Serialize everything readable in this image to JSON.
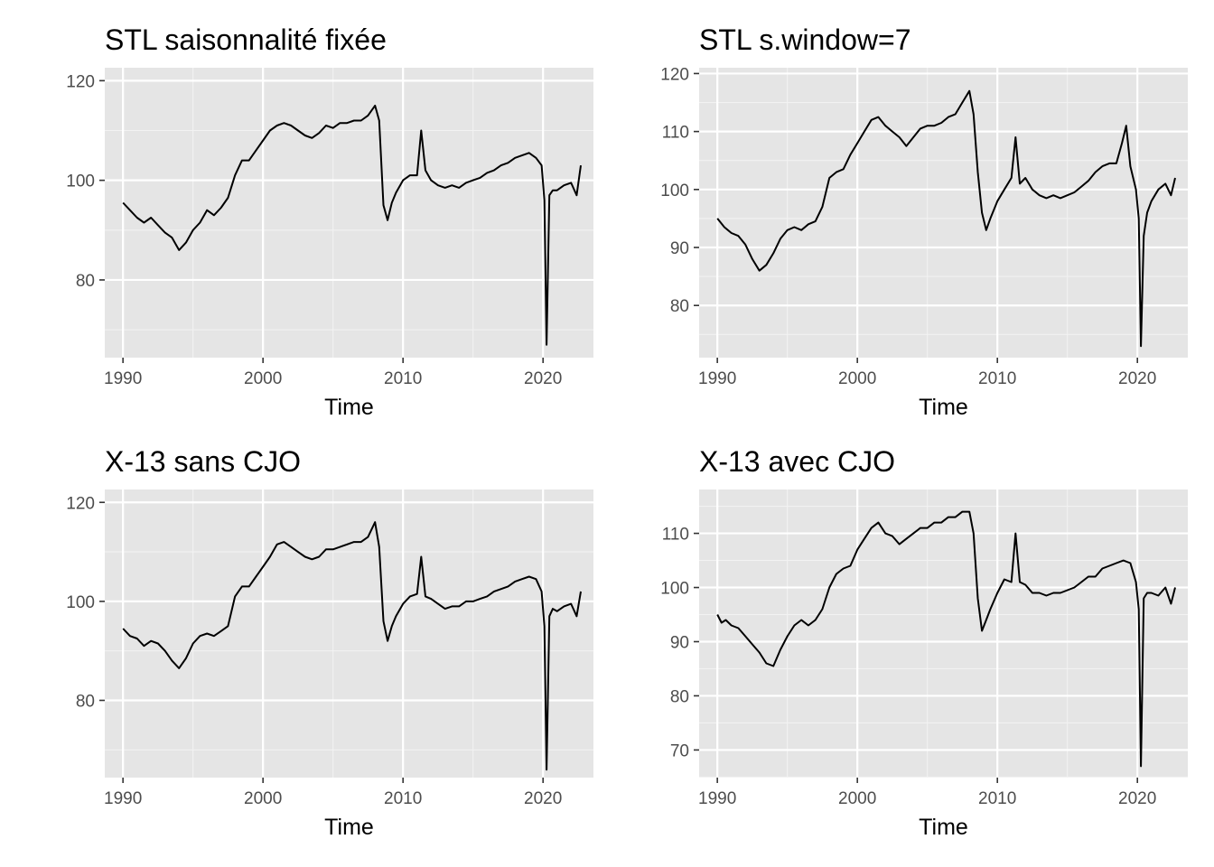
{
  "colors": {
    "panel_bg": "#e5e5e5",
    "grid_major": "#ffffff",
    "grid_minor": "#f2f2f2",
    "line": "#000000",
    "tick_text": "#4d4d4d",
    "tick_mark": "#333333"
  },
  "chart_data": [
    {
      "type": "line",
      "title": "STL saisonnalité fixée",
      "xlabel": "Time",
      "ylabel": "",
      "xlim": [
        1988.7,
        2023.6
      ],
      "ylim": [
        64.4,
        122.6
      ],
      "xticks": [
        1990,
        2000,
        2010,
        2020
      ],
      "xtick_labels": [
        "1990",
        "2000",
        "2010",
        "2020"
      ],
      "yticks": [
        80,
        100,
        120
      ],
      "ytick_labels": [
        "80",
        "100",
        "120"
      ],
      "grid": true,
      "series": [
        {
          "x": [
            1990.0,
            1990.5,
            1991.0,
            1991.5,
            1992.0,
            1992.5,
            1993.0,
            1993.5,
            1994.0,
            1994.5,
            1995.0,
            1995.5,
            1996.0,
            1996.5,
            1997.0,
            1997.5,
            1998.0,
            1998.5,
            1999.0,
            1999.5,
            2000.0,
            2000.5,
            2001.0,
            2001.5,
            2002.0,
            2002.5,
            2003.0,
            2003.5,
            2004.0,
            2004.5,
            2005.0,
            2005.5,
            2006.0,
            2006.5,
            2007.0,
            2007.5,
            2008.0,
            2008.3,
            2008.6,
            2008.9,
            2009.2,
            2009.5,
            2010.0,
            2010.5,
            2011.0,
            2011.3,
            2011.6,
            2012.0,
            2012.5,
            2013.0,
            2013.5,
            2014.0,
            2014.5,
            2015.0,
            2015.5,
            2016.0,
            2016.5,
            2017.0,
            2017.5,
            2018.0,
            2018.5,
            2019.0,
            2019.5,
            2019.9,
            2020.1,
            2020.25,
            2020.45,
            2020.7,
            2021.0,
            2021.5,
            2022.0,
            2022.4,
            2022.7
          ],
          "y": [
            95.5,
            94,
            92.5,
            91.5,
            92.5,
            91,
            89.5,
            88.5,
            86,
            87.5,
            90,
            91.5,
            94,
            93,
            94.5,
            96.5,
            101,
            104,
            104,
            106,
            108,
            110,
            111,
            111.5,
            111,
            110,
            109,
            108.5,
            109.5,
            111,
            110.5,
            111.5,
            111.5,
            112,
            112,
            113,
            115,
            112,
            95,
            92,
            95.5,
            97.5,
            100,
            101,
            101,
            110,
            102,
            100,
            99,
            98.5,
            99,
            98.5,
            99.5,
            100,
            100.5,
            101.5,
            102,
            103,
            103.5,
            104.5,
            105,
            105.5,
            104.5,
            103,
            96,
            67,
            97,
            98,
            98,
            99,
            99.5,
            97,
            103
          ]
        }
      ]
    },
    {
      "type": "line",
      "title": "STL s.window=7",
      "xlabel": "Time",
      "ylabel": "",
      "xlim": [
        1988.7,
        2023.6
      ],
      "ylim": [
        71.0,
        121.0
      ],
      "xticks": [
        1990,
        2000,
        2010,
        2020
      ],
      "xtick_labels": [
        "1990",
        "2000",
        "2010",
        "2020"
      ],
      "yticks": [
        80,
        90,
        100,
        110,
        120
      ],
      "ytick_labels": [
        "80",
        "90",
        "100",
        "110",
        "120"
      ],
      "grid": true,
      "series": [
        {
          "x": [
            1990.0,
            1990.5,
            1991.0,
            1991.5,
            1992.0,
            1992.5,
            1993.0,
            1993.5,
            1994.0,
            1994.5,
            1995.0,
            1995.5,
            1996.0,
            1996.5,
            1997.0,
            1997.5,
            1998.0,
            1998.5,
            1999.0,
            1999.5,
            2000.0,
            2000.5,
            2001.0,
            2001.5,
            2002.0,
            2002.5,
            2003.0,
            2003.5,
            2004.0,
            2004.5,
            2005.0,
            2005.5,
            2006.0,
            2006.5,
            2007.0,
            2007.5,
            2008.0,
            2008.3,
            2008.6,
            2008.9,
            2009.2,
            2009.5,
            2010.0,
            2010.5,
            2011.0,
            2011.3,
            2011.6,
            2012.0,
            2012.5,
            2013.0,
            2013.5,
            2014.0,
            2014.5,
            2015.0,
            2015.5,
            2016.0,
            2016.5,
            2017.0,
            2017.5,
            2018.0,
            2018.5,
            2018.9,
            2019.2,
            2019.5,
            2019.9,
            2020.1,
            2020.25,
            2020.45,
            2020.7,
            2021.0,
            2021.5,
            2022.0,
            2022.4,
            2022.7
          ],
          "y": [
            95,
            93.5,
            92.5,
            92,
            90.5,
            88,
            86,
            87,
            89,
            91.5,
            93,
            93.5,
            93,
            94,
            94.5,
            97,
            102,
            103,
            103.5,
            106,
            108,
            110,
            112,
            112.5,
            111,
            110,
            109,
            107.5,
            109,
            110.5,
            111,
            111,
            111.5,
            112.5,
            113,
            115,
            117,
            113,
            103,
            96,
            93,
            95,
            98,
            100,
            102,
            109,
            101,
            102,
            100,
            99,
            98.5,
            99,
            98.5,
            99,
            99.5,
            100.5,
            101.5,
            103,
            104,
            104.5,
            104.5,
            108,
            111,
            104,
            100,
            95,
            73,
            92,
            96,
            98,
            100,
            101,
            99,
            102
          ]
        }
      ]
    },
    {
      "type": "line",
      "title": "X-13 sans CJO",
      "xlabel": "Time",
      "ylabel": "",
      "xlim": [
        1988.7,
        2023.6
      ],
      "ylim": [
        64.4,
        122.6
      ],
      "xticks": [
        1990,
        2000,
        2010,
        2020
      ],
      "xtick_labels": [
        "1990",
        "2000",
        "2010",
        "2020"
      ],
      "yticks": [
        80,
        100,
        120
      ],
      "ytick_labels": [
        "80",
        "100",
        "120"
      ],
      "grid": true,
      "series": [
        {
          "x": [
            1990.0,
            1990.5,
            1991.0,
            1991.5,
            1992.0,
            1992.5,
            1993.0,
            1993.5,
            1994.0,
            1994.5,
            1995.0,
            1995.5,
            1996.0,
            1996.5,
            1997.0,
            1997.5,
            1998.0,
            1998.5,
            1999.0,
            1999.5,
            2000.0,
            2000.5,
            2001.0,
            2001.5,
            2002.0,
            2002.5,
            2003.0,
            2003.5,
            2004.0,
            2004.5,
            2005.0,
            2005.5,
            2006.0,
            2006.5,
            2007.0,
            2007.5,
            2008.0,
            2008.3,
            2008.6,
            2008.9,
            2009.2,
            2009.5,
            2010.0,
            2010.5,
            2011.0,
            2011.3,
            2011.6,
            2012.0,
            2012.5,
            2013.0,
            2013.5,
            2014.0,
            2014.5,
            2015.0,
            2015.5,
            2016.0,
            2016.5,
            2017.0,
            2017.5,
            2018.0,
            2018.5,
            2019.0,
            2019.5,
            2019.9,
            2020.1,
            2020.25,
            2020.45,
            2020.7,
            2021.0,
            2021.5,
            2022.0,
            2022.4,
            2022.7
          ],
          "y": [
            94.5,
            93,
            92.5,
            91,
            92,
            91.5,
            90,
            88,
            86.5,
            88.5,
            91.5,
            93,
            93.5,
            93,
            94,
            95,
            101,
            103,
            103,
            105,
            107,
            109,
            111.5,
            112,
            111,
            110,
            109,
            108.5,
            109,
            110.5,
            110.5,
            111,
            111.5,
            112,
            112,
            113,
            116,
            111,
            96,
            92,
            95,
            97,
            99.5,
            101,
            101.5,
            109,
            101,
            100.5,
            99.5,
            98.5,
            99,
            99,
            100,
            100,
            100.5,
            101,
            102,
            102.5,
            103,
            104,
            104.5,
            105,
            104.5,
            102,
            95,
            66,
            97,
            98.5,
            98,
            99,
            99.5,
            97,
            102
          ]
        }
      ]
    },
    {
      "type": "line",
      "title": "X-13 avec CJO",
      "xlabel": "Time",
      "ylabel": "",
      "xlim": [
        1988.7,
        2023.6
      ],
      "ylim": [
        64.9,
        118.1
      ],
      "xticks": [
        1990,
        2000,
        2010,
        2020
      ],
      "xtick_labels": [
        "1990",
        "2000",
        "2010",
        "2020"
      ],
      "yticks": [
        70,
        80,
        90,
        100,
        110
      ],
      "ytick_labels": [
        "70",
        "80",
        "90",
        "100",
        "110"
      ],
      "grid": true,
      "series": [
        {
          "x": [
            1990.0,
            1990.3,
            1990.6,
            1991.0,
            1991.5,
            1992.0,
            1992.5,
            1993.0,
            1993.5,
            1994.0,
            1994.5,
            1995.0,
            1995.5,
            1996.0,
            1996.5,
            1997.0,
            1997.5,
            1998.0,
            1998.5,
            1999.0,
            1999.5,
            2000.0,
            2000.5,
            2001.0,
            2001.5,
            2002.0,
            2002.5,
            2003.0,
            2003.5,
            2004.0,
            2004.5,
            2005.0,
            2005.5,
            2006.0,
            2006.5,
            2007.0,
            2007.5,
            2008.0,
            2008.3,
            2008.6,
            2008.9,
            2009.2,
            2009.5,
            2010.0,
            2010.5,
            2011.0,
            2011.3,
            2011.6,
            2012.0,
            2012.5,
            2013.0,
            2013.5,
            2014.0,
            2014.5,
            2015.0,
            2015.5,
            2016.0,
            2016.5,
            2017.0,
            2017.5,
            2018.0,
            2018.5,
            2019.0,
            2019.5,
            2019.9,
            2020.1,
            2020.25,
            2020.45,
            2020.7,
            2021.0,
            2021.5,
            2022.0,
            2022.4,
            2022.7
          ],
          "y": [
            95,
            93.5,
            94,
            93,
            92.5,
            91,
            89.5,
            88,
            86,
            85.5,
            88.5,
            91,
            93,
            94,
            93,
            94,
            96,
            100,
            102.5,
            103.5,
            104,
            107,
            109,
            111,
            112,
            110,
            109.5,
            108,
            109,
            110,
            111,
            111,
            112,
            112,
            113,
            113,
            114,
            114,
            110,
            98,
            92,
            94,
            96,
            99,
            101.5,
            101,
            110,
            101,
            100.5,
            99,
            99,
            98.5,
            99,
            99,
            99.5,
            100,
            101,
            102,
            102,
            103.5,
            104,
            104.5,
            105,
            104.5,
            101,
            96,
            67,
            98,
            99,
            99,
            98.5,
            100,
            97,
            100
          ]
        }
      ]
    }
  ]
}
